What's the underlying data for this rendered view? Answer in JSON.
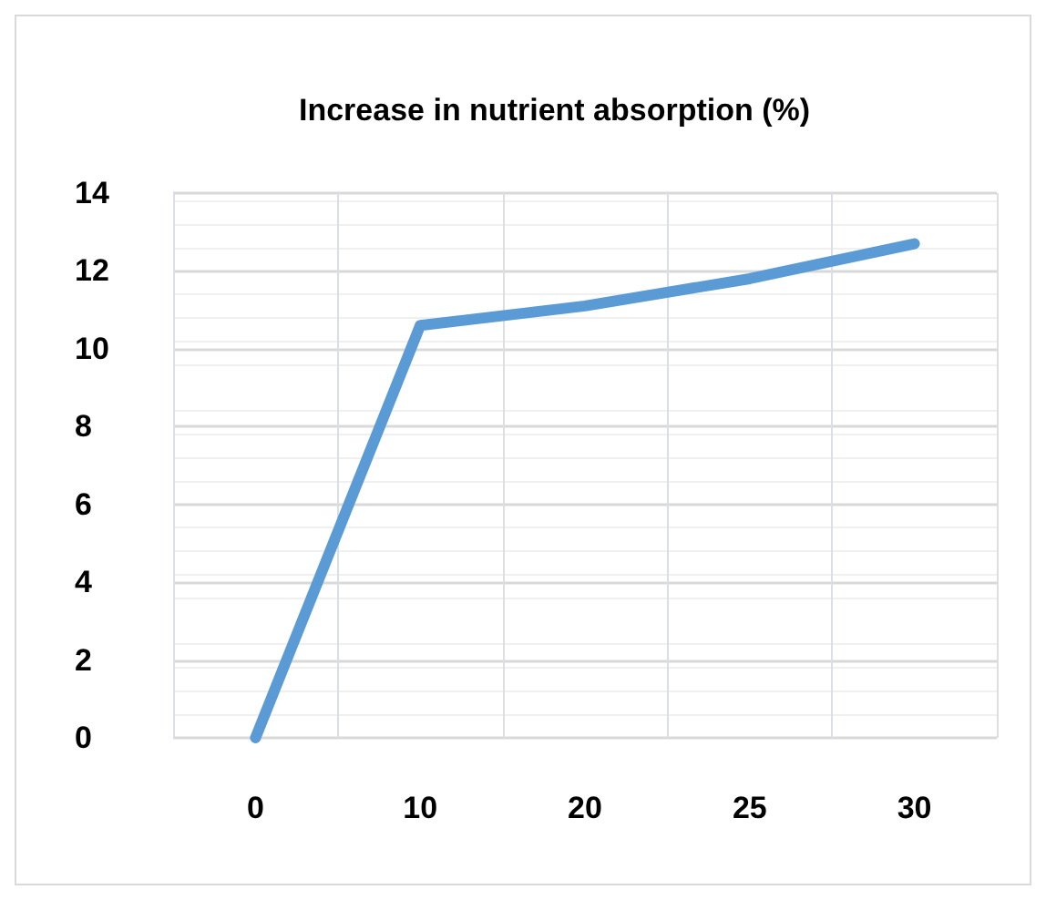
{
  "chart_data": {
    "type": "line",
    "title": "Increase in nutrient absorption (%)",
    "categories": [
      "0",
      "10",
      "20",
      "25",
      "30"
    ],
    "series": [
      {
        "color": "#5b9bd5",
        "values": [
          0,
          10.6,
          11.1,
          11.8,
          12.7
        ]
      }
    ],
    "ylim": [
      0,
      14
    ],
    "yticks": [
      0,
      2,
      4,
      6,
      8,
      10,
      12,
      14
    ],
    "grid": true,
    "marker": "none",
    "line_style": "solid"
  }
}
